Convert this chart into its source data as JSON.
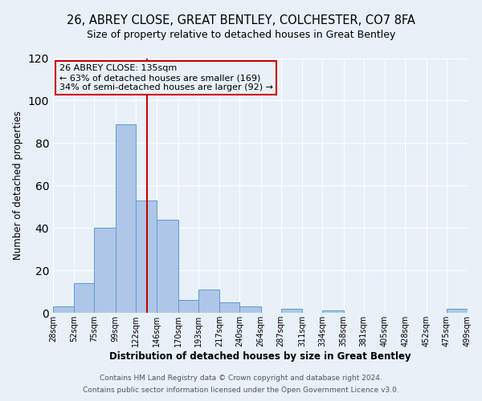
{
  "title1": "26, ABREY CLOSE, GREAT BENTLEY, COLCHESTER, CO7 8FA",
  "title2": "Size of property relative to detached houses in Great Bentley",
  "xlabel": "Distribution of detached houses by size in Great Bentley",
  "ylabel": "Number of detached properties",
  "bin_edges": [
    28,
    52,
    75,
    99,
    122,
    146,
    170,
    193,
    217,
    240,
    264,
    287,
    311,
    334,
    358,
    381,
    405,
    428,
    452,
    475,
    499
  ],
  "bar_heights": [
    3,
    14,
    40,
    89,
    53,
    44,
    6,
    11,
    5,
    3,
    0,
    2,
    0,
    1,
    0,
    0,
    0,
    0,
    0,
    2
  ],
  "bar_color": "#aec6e8",
  "bar_edgecolor": "#5b9bd5",
  "vline_x": 135,
  "vline_color": "#cc0000",
  "annotation_title": "26 ABREY CLOSE: 135sqm",
  "annotation_line1": "← 63% of detached houses are smaller (169)",
  "annotation_line2": "34% of semi-detached houses are larger (92) →",
  "annotation_box_edgecolor": "#cc0000",
  "ylim": [
    0,
    120
  ],
  "yticks": [
    0,
    20,
    40,
    60,
    80,
    100,
    120
  ],
  "tick_labels": [
    "28sqm",
    "52sqm",
    "75sqm",
    "99sqm",
    "122sqm",
    "146sqm",
    "170sqm",
    "193sqm",
    "217sqm",
    "240sqm",
    "264sqm",
    "287sqm",
    "311sqm",
    "334sqm",
    "358sqm",
    "381sqm",
    "405sqm",
    "428sqm",
    "452sqm",
    "475sqm",
    "499sqm"
  ],
  "footer1": "Contains HM Land Registry data © Crown copyright and database right 2024.",
  "footer2": "Contains public sector information licensed under the Open Government Licence v3.0.",
  "background_color": "#e8f0f8",
  "grid_color": "#ffffff",
  "title_fontsize": 10.5,
  "subtitle_fontsize": 9,
  "ylabel_fontsize": 8.5,
  "xlabel_fontsize": 8.5,
  "annotation_fontsize": 8,
  "footer_fontsize": 6.5
}
